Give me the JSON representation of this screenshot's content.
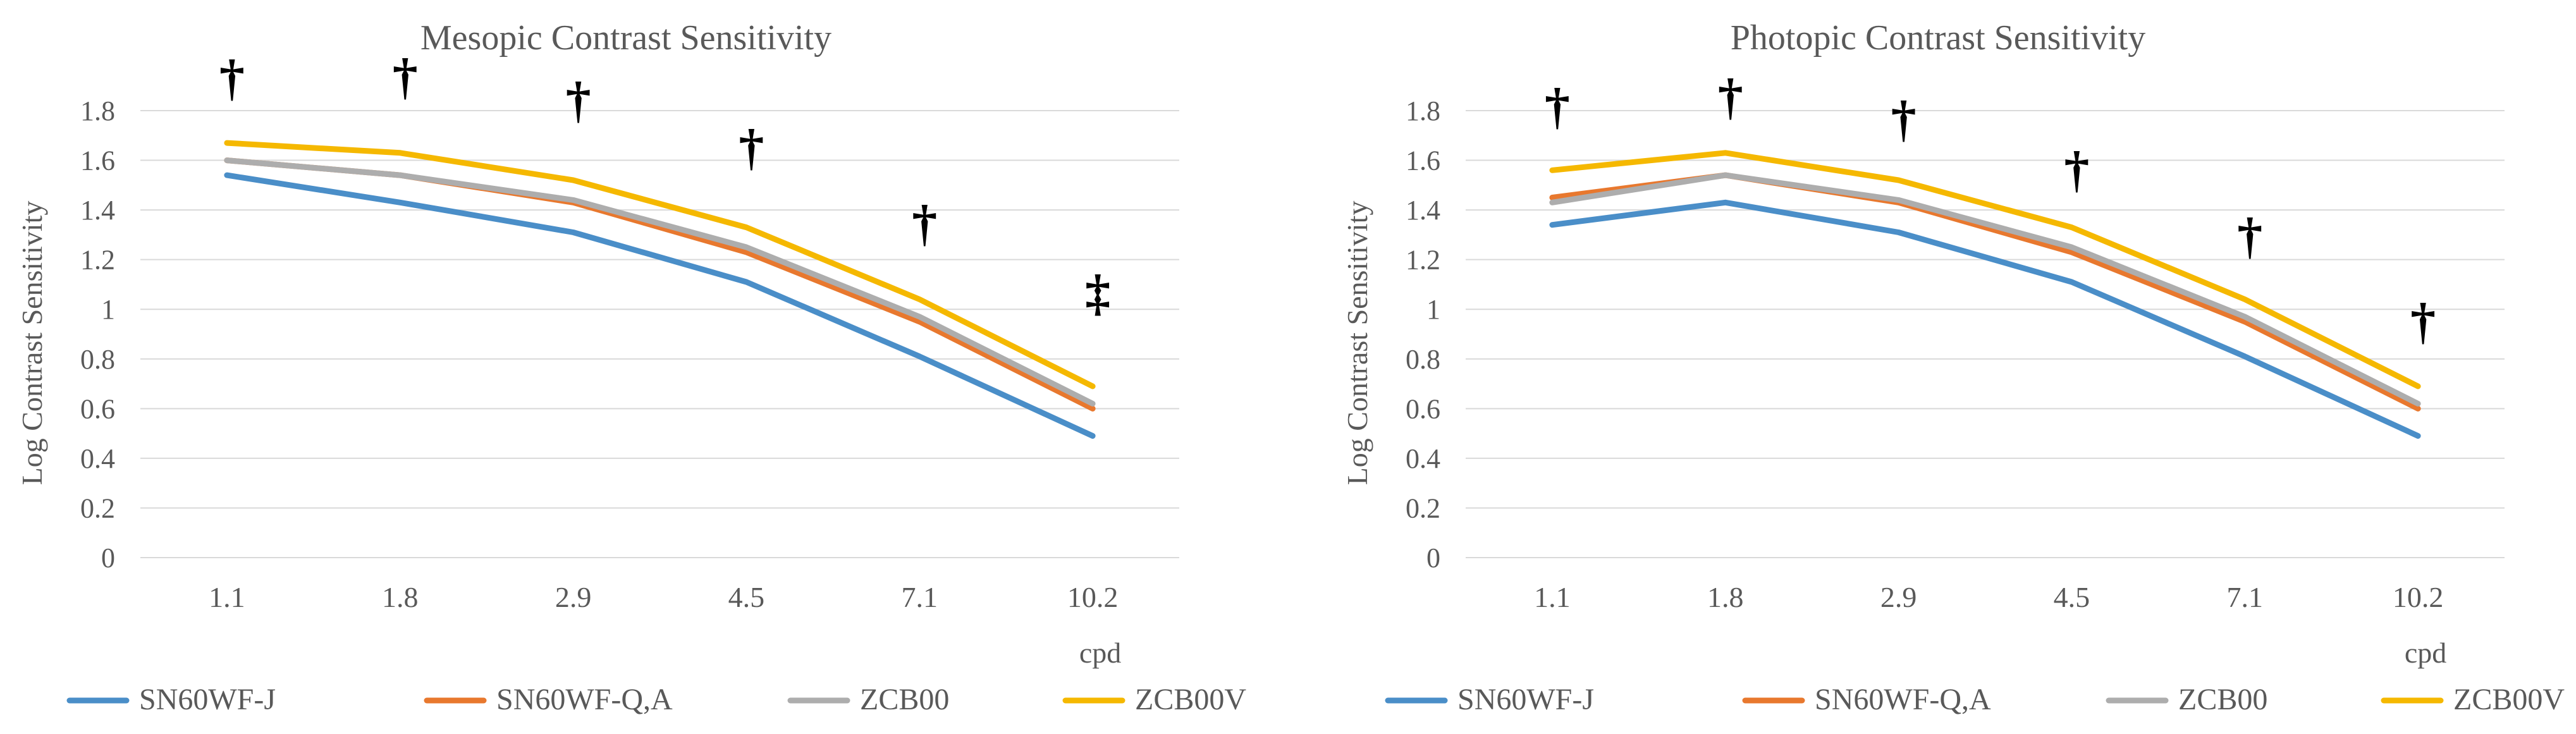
{
  "chart_data": [
    {
      "type": "line",
      "title": "Mesopic Contrast Sensitivity",
      "xlabel": "cpd",
      "ylabel": "Log Contrast Sensitivity",
      "categories": [
        "1.1",
        "1.8",
        "2.9",
        "4.5",
        "7.1",
        "10.2"
      ],
      "ylim": [
        0,
        1.8
      ],
      "yticks": [
        "0",
        "0.2",
        "0.4",
        "0.6",
        "0.8",
        "1",
        "1.2",
        "1.4",
        "1.6",
        "1.8"
      ],
      "grid": true,
      "legend": "bottom",
      "series": [
        {
          "name": "SN60WF-J",
          "color": "#4a8ec8",
          "values": [
            1.54,
            1.43,
            1.31,
            1.11,
            0.81,
            0.49
          ]
        },
        {
          "name": "SN60WF-Q,A",
          "color": "#e8782e",
          "values": [
            1.6,
            1.54,
            1.43,
            1.23,
            0.95,
            0.6
          ]
        },
        {
          "name": "ZCB00",
          "color": "#adadad",
          "values": [
            1.6,
            1.54,
            1.44,
            1.25,
            0.97,
            0.62
          ]
        },
        {
          "name": "ZCB00V",
          "color": "#f5b800",
          "values": [
            1.67,
            1.63,
            1.52,
            1.33,
            1.04,
            0.69
          ]
        }
      ],
      "annotations": [
        "†",
        "†",
        "†",
        "†",
        "†",
        "‡"
      ]
    },
    {
      "type": "line",
      "title": "Photopic Contrast Sensitivity",
      "xlabel": "cpd",
      "ylabel": "Log Contrast Sensitivity",
      "categories": [
        "1.1",
        "1.8",
        "2.9",
        "4.5",
        "7.1",
        "10.2"
      ],
      "ylim": [
        0,
        1.8
      ],
      "yticks": [
        "0",
        "0.2",
        "0.4",
        "0.6",
        "0.8",
        "1",
        "1.2",
        "1.4",
        "1.6",
        "1.8"
      ],
      "grid": true,
      "legend": "bottom",
      "series": [
        {
          "name": "SN60WF-J",
          "color": "#4a8ec8",
          "values": [
            1.34,
            1.43,
            1.31,
            1.11,
            0.81,
            0.49
          ]
        },
        {
          "name": "SN60WF-Q,A",
          "color": "#e8782e",
          "values": [
            1.45,
            1.54,
            1.43,
            1.23,
            0.95,
            0.6
          ]
        },
        {
          "name": "ZCB00",
          "color": "#adadad",
          "values": [
            1.43,
            1.54,
            1.44,
            1.25,
            0.97,
            0.62
          ]
        },
        {
          "name": "ZCB00V",
          "color": "#f5b800",
          "values": [
            1.56,
            1.63,
            1.52,
            1.33,
            1.04,
            0.69
          ]
        }
      ],
      "annotations": [
        "†",
        "†",
        "†",
        "†",
        "†",
        "†"
      ]
    }
  ]
}
